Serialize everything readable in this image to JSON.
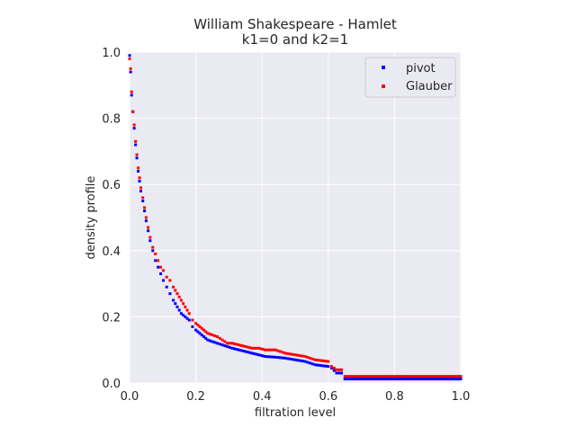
{
  "chart_data": {
    "type": "scatter",
    "title_line1": "William Shakespeare - Hamlet",
    "title_line2": "k1=0 and k2=1",
    "xlabel": "filtration level",
    "ylabel": "density profile",
    "xlim": [
      0,
      1
    ],
    "ylim": [
      0,
      1
    ],
    "x_ticks": [
      "0.0",
      "0.2",
      "0.4",
      "0.6",
      "0.8",
      "1.0"
    ],
    "y_ticks": [
      "0.0",
      "0.2",
      "0.4",
      "0.6",
      "0.8",
      "1.0"
    ],
    "grid": true,
    "legend_position": "top-right",
    "series": [
      {
        "name": "pivot",
        "color": "#0000ff",
        "points": [
          [
            0.0,
            0.99
          ],
          [
            0.003,
            0.94
          ],
          [
            0.006,
            0.87
          ],
          [
            0.01,
            0.82
          ],
          [
            0.014,
            0.77
          ],
          [
            0.018,
            0.72
          ],
          [
            0.022,
            0.68
          ],
          [
            0.026,
            0.64
          ],
          [
            0.03,
            0.61
          ],
          [
            0.034,
            0.58
          ],
          [
            0.04,
            0.55
          ],
          [
            0.045,
            0.52
          ],
          [
            0.05,
            0.49
          ],
          [
            0.056,
            0.46
          ],
          [
            0.062,
            0.43
          ],
          [
            0.07,
            0.4
          ],
          [
            0.078,
            0.37
          ],
          [
            0.086,
            0.35
          ],
          [
            0.094,
            0.33
          ],
          [
            0.102,
            0.31
          ],
          [
            0.112,
            0.29
          ],
          [
            0.122,
            0.27
          ],
          [
            0.132,
            0.25
          ],
          [
            0.144,
            0.23
          ],
          [
            0.156,
            0.21
          ],
          [
            0.168,
            0.2
          ],
          [
            0.18,
            0.19
          ],
          [
            0.19,
            0.17
          ],
          [
            0.2,
            0.16
          ],
          [
            0.212,
            0.15
          ],
          [
            0.224,
            0.14
          ],
          [
            0.236,
            0.13
          ],
          [
            0.25,
            0.125
          ],
          [
            0.265,
            0.12
          ],
          [
            0.28,
            0.115
          ],
          [
            0.295,
            0.11
          ],
          [
            0.31,
            0.105
          ],
          [
            0.33,
            0.1
          ],
          [
            0.35,
            0.095
          ],
          [
            0.37,
            0.09
          ],
          [
            0.39,
            0.085
          ],
          [
            0.41,
            0.08
          ],
          [
            0.44,
            0.078
          ],
          [
            0.47,
            0.075
          ],
          [
            0.5,
            0.07
          ],
          [
            0.53,
            0.065
          ],
          [
            0.56,
            0.055
          ],
          [
            0.6,
            0.05
          ],
          [
            0.61,
            0.045
          ],
          [
            0.625,
            0.03
          ],
          [
            0.64,
            0.03
          ],
          [
            0.65,
            0.012
          ],
          [
            0.7,
            0.012
          ],
          [
            0.8,
            0.012
          ],
          [
            0.9,
            0.012
          ],
          [
            1.0,
            0.012
          ]
        ]
      },
      {
        "name": "Glauber",
        "color": "#ff0000",
        "points": [
          [
            0.0,
            0.98
          ],
          [
            0.003,
            0.95
          ],
          [
            0.006,
            0.88
          ],
          [
            0.01,
            0.82
          ],
          [
            0.014,
            0.78
          ],
          [
            0.018,
            0.73
          ],
          [
            0.022,
            0.69
          ],
          [
            0.026,
            0.65
          ],
          [
            0.03,
            0.62
          ],
          [
            0.034,
            0.59
          ],
          [
            0.04,
            0.56
          ],
          [
            0.045,
            0.53
          ],
          [
            0.05,
            0.5
          ],
          [
            0.056,
            0.47
          ],
          [
            0.062,
            0.44
          ],
          [
            0.07,
            0.41
          ],
          [
            0.078,
            0.39
          ],
          [
            0.086,
            0.37
          ],
          [
            0.094,
            0.35
          ],
          [
            0.102,
            0.34
          ],
          [
            0.112,
            0.32
          ],
          [
            0.122,
            0.31
          ],
          [
            0.132,
            0.29
          ],
          [
            0.144,
            0.27
          ],
          [
            0.156,
            0.25
          ],
          [
            0.168,
            0.23
          ],
          [
            0.18,
            0.21
          ],
          [
            0.19,
            0.19
          ],
          [
            0.2,
            0.18
          ],
          [
            0.212,
            0.17
          ],
          [
            0.224,
            0.16
          ],
          [
            0.236,
            0.15
          ],
          [
            0.25,
            0.145
          ],
          [
            0.265,
            0.14
          ],
          [
            0.28,
            0.13
          ],
          [
            0.295,
            0.12
          ],
          [
            0.31,
            0.12
          ],
          [
            0.33,
            0.115
          ],
          [
            0.35,
            0.11
          ],
          [
            0.37,
            0.105
          ],
          [
            0.39,
            0.105
          ],
          [
            0.41,
            0.1
          ],
          [
            0.44,
            0.1
          ],
          [
            0.47,
            0.09
          ],
          [
            0.5,
            0.085
          ],
          [
            0.53,
            0.08
          ],
          [
            0.56,
            0.07
          ],
          [
            0.6,
            0.065
          ],
          [
            0.61,
            0.05
          ],
          [
            0.625,
            0.04
          ],
          [
            0.64,
            0.04
          ],
          [
            0.65,
            0.02
          ],
          [
            0.7,
            0.02
          ],
          [
            0.8,
            0.02
          ],
          [
            0.9,
            0.02
          ],
          [
            1.0,
            0.02
          ]
        ]
      }
    ]
  }
}
